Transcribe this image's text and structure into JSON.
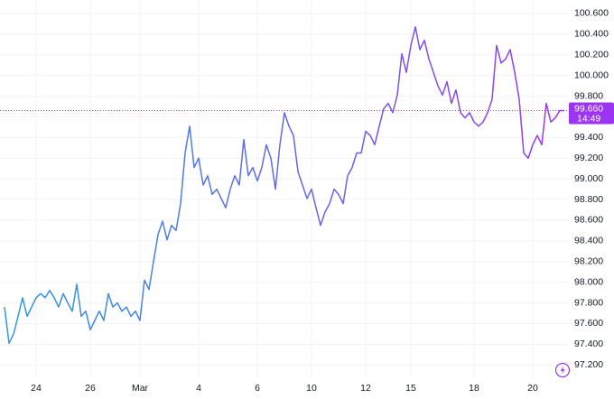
{
  "chart_data": {
    "type": "line",
    "categories": [
      null,
      null,
      null,
      null,
      null,
      null,
      null,
      "24",
      null,
      null,
      null,
      null,
      null,
      null,
      null,
      null,
      null,
      null,
      null,
      "26",
      null,
      null,
      null,
      null,
      null,
      null,
      null,
      null,
      null,
      null,
      "Mar",
      null,
      null,
      null,
      null,
      null,
      null,
      null,
      null,
      null,
      null,
      null,
      null,
      "4",
      null,
      null,
      null,
      null,
      null,
      null,
      null,
      null,
      null,
      null,
      null,
      null,
      "6",
      null,
      null,
      null,
      null,
      null,
      null,
      null,
      null,
      null,
      null,
      null,
      "10",
      null,
      null,
      null,
      null,
      null,
      null,
      null,
      null,
      null,
      null,
      null,
      "12",
      null,
      null,
      null,
      null,
      null,
      null,
      null,
      null,
      null,
      "15",
      null,
      null,
      null,
      null,
      null,
      null,
      null,
      null,
      null,
      null,
      null,
      null,
      null,
      "18",
      null,
      null,
      null,
      null,
      null,
      null,
      null,
      null,
      null,
      null,
      null,
      null,
      "20",
      null,
      null,
      null,
      null,
      null,
      null,
      null
    ],
    "values": [
      97.76,
      97.41,
      97.5,
      97.67,
      97.85,
      97.67,
      97.76,
      97.85,
      97.89,
      97.85,
      97.92,
      97.85,
      97.76,
      97.89,
      97.8,
      97.72,
      97.98,
      97.67,
      97.72,
      97.54,
      97.63,
      97.72,
      97.63,
      97.89,
      97.76,
      97.8,
      97.72,
      97.76,
      97.67,
      97.72,
      97.63,
      98.02,
      97.93,
      98.2,
      98.46,
      98.59,
      98.41,
      98.55,
      98.5,
      98.76,
      99.25,
      99.51,
      99.11,
      99.2,
      98.94,
      99.03,
      98.85,
      98.9,
      98.81,
      98.72,
      98.9,
      99.03,
      98.94,
      99.38,
      99.03,
      99.11,
      98.98,
      99.11,
      99.33,
      99.2,
      98.9,
      99.33,
      99.64,
      99.51,
      99.42,
      99.07,
      98.94,
      98.81,
      98.9,
      98.72,
      98.55,
      98.68,
      98.76,
      98.9,
      98.85,
      98.76,
      99.03,
      99.11,
      99.25,
      99.25,
      99.46,
      99.42,
      99.33,
      99.51,
      99.68,
      99.73,
      99.64,
      99.81,
      100.21,
      100.03,
      100.29,
      100.47,
      100.25,
      100.34,
      100.16,
      100.03,
      99.9,
      99.81,
      99.94,
      99.73,
      99.86,
      99.64,
      99.59,
      99.64,
      99.55,
      99.51,
      99.55,
      99.64,
      99.77,
      100.29,
      100.12,
      100.16,
      100.25,
      100.03,
      99.77,
      99.25,
      99.2,
      99.33,
      99.42,
      99.33,
      99.73,
      99.55,
      99.59,
      99.66,
      99.66
    ],
    "color_start": "#2b9be0",
    "color_end": "#9c35f2",
    "ylim": [
      97.08,
      100.73
    ],
    "yticks": [
      {
        "value": 97.2,
        "label": "97.200"
      },
      {
        "value": 97.4,
        "label": "97.400"
      },
      {
        "value": 97.6,
        "label": "97.600"
      },
      {
        "value": 97.8,
        "label": "97.800"
      },
      {
        "value": 98.0,
        "label": "98.000"
      },
      {
        "value": 98.2,
        "label": "98.200"
      },
      {
        "value": 98.4,
        "label": "98.400"
      },
      {
        "value": 98.6,
        "label": "98.600"
      },
      {
        "value": 98.8,
        "label": "98.800"
      },
      {
        "value": 99.0,
        "label": "99.000"
      },
      {
        "value": 99.2,
        "label": "99.200"
      },
      {
        "value": 99.4,
        "label": "99.400"
      },
      {
        "value": 99.6,
        "label": "99.600"
      },
      {
        "value": 99.8,
        "label": "99.800"
      },
      {
        "value": 100.0,
        "label": "100.000"
      },
      {
        "value": 100.2,
        "label": "100.200"
      },
      {
        "value": 100.4,
        "label": "100.400"
      },
      {
        "value": 100.6,
        "label": "100.600"
      }
    ],
    "grid": true,
    "last_value": {
      "value": 99.66,
      "label": "99.660"
    },
    "last_time": "14:49"
  }
}
